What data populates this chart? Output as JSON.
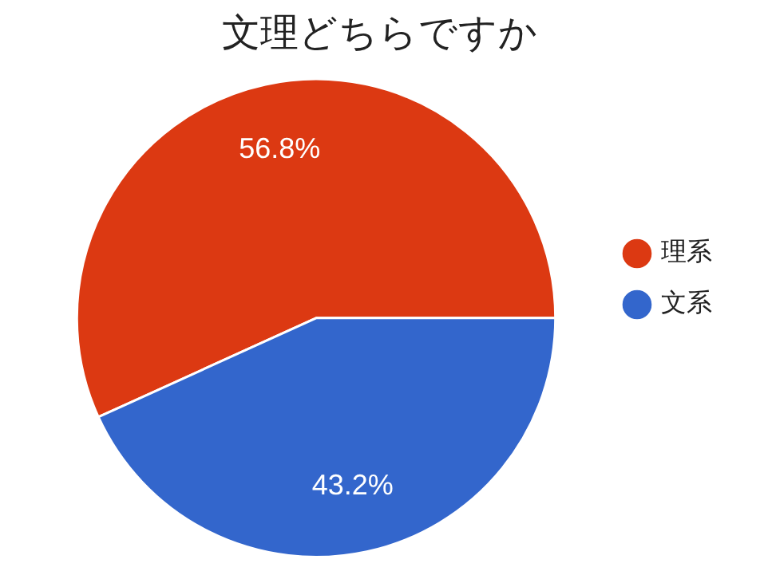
{
  "chart_data": {
    "type": "pie",
    "title": "文理どちらですか",
    "categories": [
      "理系",
      "文系"
    ],
    "values": [
      56.8,
      43.2
    ],
    "colors": [
      "#dc3912",
      "#3366cc"
    ],
    "value_labels": [
      "56.8%",
      "43.2%"
    ],
    "legend": "right"
  }
}
